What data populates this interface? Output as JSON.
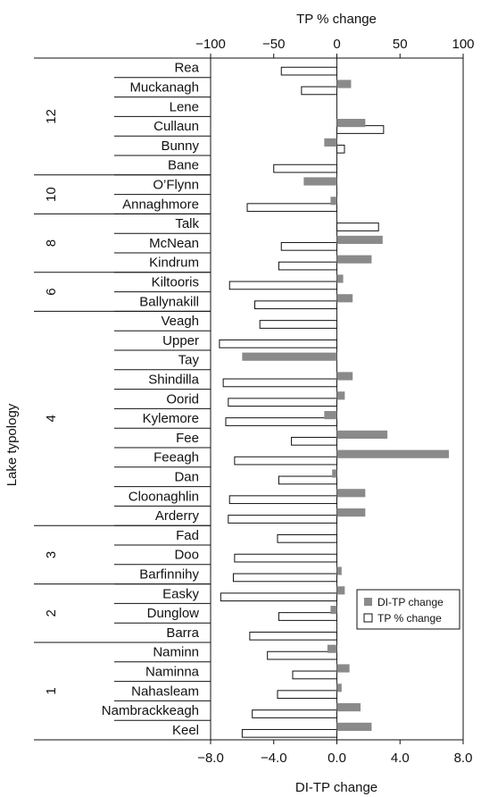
{
  "chart_data": {
    "type": "bar",
    "orientation": "horizontal",
    "top_axis": {
      "label": "TP % change",
      "range": [
        -100,
        100
      ],
      "ticks": [
        -100,
        -50,
        0,
        50,
        100
      ],
      "tick_labels": [
        "−100",
        "−50",
        "0",
        "50",
        "100"
      ]
    },
    "bottom_axis": {
      "label": "DI-TP change",
      "range": [
        -8.0,
        8.0
      ],
      "ticks": [
        -8,
        -4,
        0,
        4,
        8
      ],
      "tick_labels": [
        "−8.0",
        "−4.0",
        "0.0",
        "4.0",
        "8.0"
      ]
    },
    "y_axis_label": "Lake typology",
    "groups": [
      {
        "label": "12",
        "lakes": [
          "Rea",
          "Muckanagh",
          "Lene",
          "Cullaun",
          "Bunny",
          "Bane"
        ]
      },
      {
        "label": "10",
        "lakes": [
          "O’Flynn",
          "Annaghmore"
        ]
      },
      {
        "label": "8",
        "lakes": [
          "Talk",
          "McNean",
          "Kindrum"
        ]
      },
      {
        "label": "6",
        "lakes": [
          "Kiltooris",
          "Ballynakill"
        ]
      },
      {
        "label": "4",
        "lakes": [
          "Veagh",
          "Upper",
          "Tay",
          "Shindilla",
          "Oorid",
          "Kylemore",
          "Fee",
          "Feeagh",
          "Dan",
          "Cloonaghlin",
          "Arderry"
        ]
      },
      {
        "label": "3",
        "lakes": [
          "Fad",
          "Doo",
          "Barfinnihy"
        ]
      },
      {
        "label": "2",
        "lakes": [
          "Easky",
          "Dunglow",
          "Barra"
        ]
      },
      {
        "label": "1",
        "lakes": [
          "Naminn",
          "Naminna",
          "Nahasleam",
          "Nambrackkeagh",
          "Keel"
        ]
      }
    ],
    "categories": [
      "Rea",
      "Muckanagh",
      "Lene",
      "Cullaun",
      "Bunny",
      "Bane",
      "O’Flynn",
      "Annaghmore",
      "Talk",
      "McNean",
      "Kindrum",
      "Kiltooris",
      "Ballynakill",
      "Veagh",
      "Upper",
      "Tay",
      "Shindilla",
      "Oorid",
      "Kylemore",
      "Fee",
      "Feeagh",
      "Dan",
      "Cloonaghlin",
      "Arderry",
      "Fad",
      "Doo",
      "Barfinnihy",
      "Easky",
      "Dunglow",
      "Barra",
      "Naminn",
      "Naminna",
      "Nahasleam",
      "Nambrackkeagh",
      "Keel"
    ],
    "series": [
      {
        "name": "DI-TP change",
        "axis": "bottom",
        "style": "filled",
        "color": "#8a8a8a",
        "values": [
          0,
          0.9,
          0,
          1.8,
          -0.8,
          0,
          -2.1,
          -0.4,
          0,
          2.9,
          2.2,
          0.4,
          1.0,
          0,
          0,
          -6.0,
          1.0,
          0.5,
          -0.8,
          3.2,
          7.1,
          -0.3,
          1.8,
          1.8,
          0,
          0,
          0.3,
          0.5,
          -0.4,
          0,
          -0.6,
          0.8,
          0.3,
          1.5,
          2.2
        ]
      },
      {
        "name": "TP % change",
        "axis": "top",
        "style": "outline",
        "color": "#ffffff",
        "values": [
          -44,
          -28,
          0,
          37,
          6,
          -50,
          0,
          -71,
          33,
          -44,
          -46,
          -85,
          -65,
          -61,
          -93,
          0,
          -90,
          -86,
          -88,
          -36,
          -81,
          -46,
          -85,
          -86,
          -47,
          -81,
          -82,
          -92,
          -46,
          -69,
          -55,
          -35,
          -47,
          -67,
          -75
        ]
      }
    ],
    "legend_position": "bottom-right"
  }
}
